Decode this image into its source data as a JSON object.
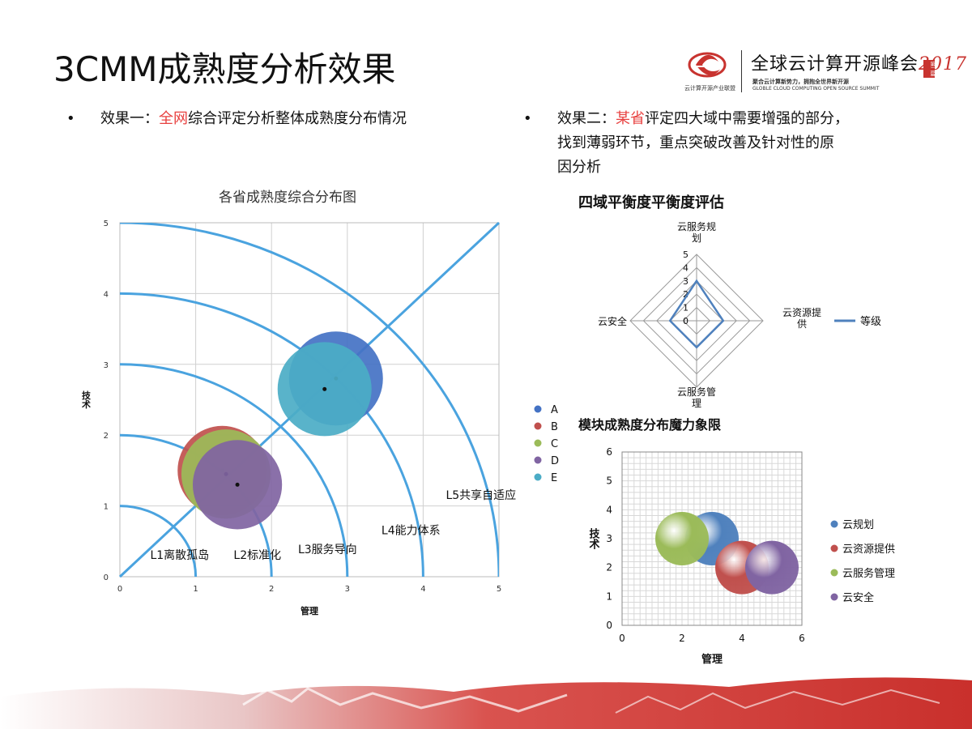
{
  "slide": {
    "title": "3CMM成熟度分析效果"
  },
  "bullets": [
    {
      "dot": "•",
      "prefix": "效果一：",
      "highlight": "全网",
      "rest": "综合评定分析整体成熟度分布情况"
    },
    {
      "dot": "•",
      "prefix": "效果二：",
      "highlight": "某省",
      "rest": "评定四大域中需要增强的部分，",
      "line2": "找到薄弱环节，重点突破改善及针对性的原",
      "line3": "因分析"
    }
  ],
  "logo": {
    "org_caption": "云计算开源产业联盟",
    "slogan": "全球云计算开源峰会",
    "year": "2017",
    "badge": "第二届",
    "subcaption": "聚合云计算新势力，拥抱全世界新开源",
    "english": "GLOBLE CLOUD COMPUTING OPEN SOURCE SUMMIT",
    "accent": "#c8332f"
  },
  "chart_data": [
    {
      "type": "bubble",
      "title": "各省成熟度综合分布图",
      "xlabel": "管理",
      "ylabel": "技术",
      "xlim": [
        0,
        5
      ],
      "ylim": [
        0,
        5
      ],
      "xticks": [
        "0",
        "1",
        "2",
        "3",
        "4",
        "5"
      ],
      "yticks": [
        "0",
        "1",
        "2",
        "3",
        "4",
        "5"
      ],
      "grid": true,
      "legend_position": "right",
      "series": [
        {
          "name": "A",
          "x": 2.85,
          "y": 2.8,
          "size": 1.0,
          "color": "#4472c4"
        },
        {
          "name": "B",
          "x": 1.35,
          "y": 1.5,
          "size": 0.95,
          "color": "#c0504d"
        },
        {
          "name": "C",
          "x": 1.4,
          "y": 1.45,
          "size": 0.95,
          "color": "#9bbb59"
        },
        {
          "name": "D",
          "x": 1.55,
          "y": 1.3,
          "size": 0.95,
          "color": "#8064a2"
        },
        {
          "name": "E",
          "x": 2.7,
          "y": 2.65,
          "size": 1.0,
          "color": "#4bacc6"
        }
      ],
      "levels": [
        {
          "label": "L1离散孤岛",
          "radius": 1
        },
        {
          "label": "L2标准化",
          "radius": 2
        },
        {
          "label": "L3服务导向",
          "radius": 3
        },
        {
          "label": "L4能力体系",
          "radius": 4
        },
        {
          "label": "L5共享自适应",
          "radius": 5
        }
      ],
      "line_color": "#4aa3df"
    },
    {
      "type": "radar",
      "title": "四域平衡度平衡度评估",
      "axes": [
        "云服务规划",
        "云资源提供",
        "云服务管理",
        "云安全"
      ],
      "axis_labels_display": [
        [
          "云服务规",
          "划"
        ],
        [
          "云资源提",
          "供"
        ],
        [
          "云服务管",
          "理"
        ],
        [
          "云安全"
        ]
      ],
      "rmax": 5,
      "ticks": [
        "0",
        "1",
        "2",
        "3",
        "4",
        "5"
      ],
      "series": [
        {
          "name": "等级",
          "values": [
            3,
            2,
            2,
            2
          ],
          "color": "#4f81bd"
        }
      ],
      "legend_position": "right"
    },
    {
      "type": "bubble",
      "title": "模块成熟度分布魔力象限",
      "xlabel": "管理",
      "ylabel": "技术",
      "xlim": [
        0,
        6
      ],
      "ylim": [
        0,
        6
      ],
      "xticks": [
        "0",
        "2",
        "4",
        "6"
      ],
      "yticks": [
        "0",
        "1",
        "2",
        "3",
        "4",
        "5",
        "6"
      ],
      "grid": true,
      "legend_position": "right",
      "series": [
        {
          "name": "云规划",
          "x": 3,
          "y": 3,
          "size": 1,
          "color": "#4f81bd"
        },
        {
          "name": "云资源提供",
          "x": 4,
          "y": 2,
          "size": 1,
          "color": "#c0504d"
        },
        {
          "name": "云服务管理",
          "x": 2,
          "y": 3,
          "size": 1,
          "color": "#9bbb59"
        },
        {
          "name": "云安全",
          "x": 5,
          "y": 2,
          "size": 1,
          "color": "#8064a2"
        }
      ]
    }
  ]
}
